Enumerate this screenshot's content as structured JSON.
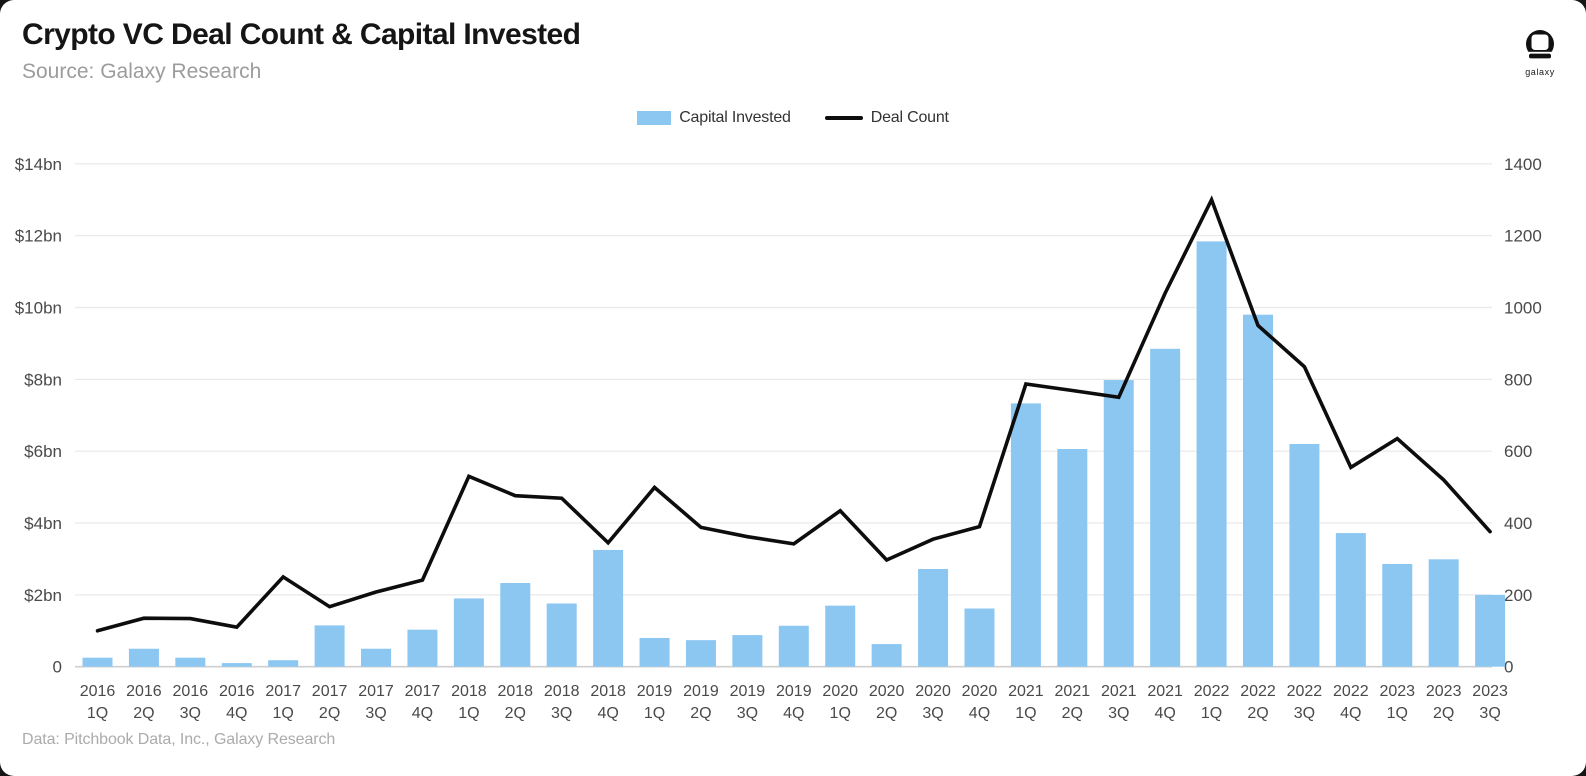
{
  "header": {
    "title": "Crypto VC Deal Count & Capital Invested",
    "source": "Source: Galaxy Research"
  },
  "logo": {
    "label": "galaxy"
  },
  "legend": [
    {
      "label": "Capital Invested",
      "swatch": "bar-swatch",
      "color": "#8CC7F2"
    },
    {
      "label": "Deal Count",
      "swatch": "line-swatch",
      "color": "#0d0d0d"
    }
  ],
  "footer": {
    "credit": "Data: Pitchbook Data, Inc., Galaxy Research"
  },
  "colors": {
    "bar": "#8CC7F2",
    "line": "#0d0d0d",
    "gridline": "#e9e9e9",
    "zero_line": "#cfcfcf",
    "tick_label": "#4a4a4a"
  },
  "chart_data": {
    "type": "bar+line combo",
    "title": "Crypto VC Deal Count & Capital Invested",
    "categories": [
      "2016 1Q",
      "2016 2Q",
      "2016 3Q",
      "2016 4Q",
      "2017 1Q",
      "2017 2Q",
      "2017 3Q",
      "2017 4Q",
      "2018 1Q",
      "2018 2Q",
      "2018 3Q",
      "2018 4Q",
      "2019 1Q",
      "2019 2Q",
      "2019 3Q",
      "2019 4Q",
      "2020 1Q",
      "2020 2Q",
      "2020 3Q",
      "2020 4Q",
      "2021 1Q",
      "2021 2Q",
      "2021 3Q",
      "2021 4Q",
      "2022 1Q",
      "2022 2Q",
      "2022 3Q",
      "2022 4Q",
      "2023 1Q",
      "2023 2Q",
      "2023 3Q"
    ],
    "series": [
      {
        "name": "Capital Invested",
        "type": "bar",
        "axis": "left",
        "unit": "$bn",
        "values": [
          0.25,
          0.5,
          0.25,
          0.1,
          0.18,
          1.15,
          0.5,
          1.03,
          1.9,
          2.33,
          1.76,
          3.25,
          0.8,
          0.74,
          0.88,
          1.14,
          1.7,
          0.63,
          2.72,
          1.62,
          7.33,
          6.06,
          7.98,
          8.85,
          11.84,
          9.8,
          6.2,
          3.72,
          2.86,
          2.99,
          2.0
        ]
      },
      {
        "name": "Deal Count",
        "type": "line",
        "axis": "right",
        "unit": "deals",
        "values": [
          100,
          135,
          134,
          110,
          250,
          167,
          208,
          241,
          530,
          476,
          469,
          345,
          499,
          388,
          362,
          342,
          434,
          297,
          355,
          390,
          787,
          769,
          750,
          1040,
          1300,
          950,
          835,
          555,
          635,
          520,
          376
        ]
      }
    ],
    "left_axis": {
      "min": 0,
      "max": 14,
      "tick_labels": [
        "$14bn",
        "$12bn",
        "$10bn",
        "$8bn",
        "$6bn",
        "$4bn",
        "$2bn",
        "0"
      ]
    },
    "right_axis": {
      "min": 0,
      "max": 1400,
      "tick_labels": [
        "1400",
        "1200",
        "1000",
        "800",
        "600",
        "400",
        "200",
        "0"
      ]
    },
    "grid": "horizontal only",
    "legend_position": "top center"
  }
}
